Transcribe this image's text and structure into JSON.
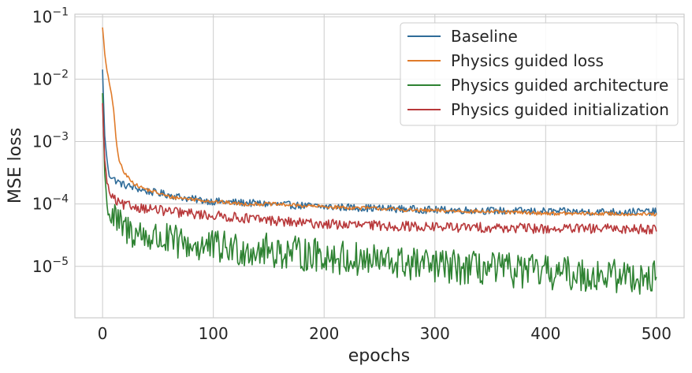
{
  "chart_data": {
    "type": "line",
    "xlabel": "epochs",
    "ylabel": "MSE loss",
    "xlim": [
      -25,
      525
    ],
    "ylim": [
      1.5e-06,
      0.11
    ],
    "yscale": "log",
    "grid": true,
    "legend_position": "top-right",
    "x_ticks": [
      0,
      100,
      200,
      300,
      400,
      500
    ],
    "x_tick_labels": [
      "0",
      "100",
      "200",
      "300",
      "400",
      "500"
    ],
    "y_ticks": [
      1e-05,
      0.0001,
      0.001,
      0.01,
      0.1
    ],
    "y_tick_labels": [
      {
        "base": "10",
        "exp": "−5"
      },
      {
        "base": "10",
        "exp": "−4"
      },
      {
        "base": "10",
        "exp": "−3"
      },
      {
        "base": "10",
        "exp": "−2"
      },
      {
        "base": "10",
        "exp": "−1"
      }
    ],
    "series": [
      {
        "name": "Baseline",
        "color": "#2f6c99",
        "x": [
          0,
          2,
          4,
          6,
          10,
          15,
          20,
          30,
          40,
          50,
          60,
          80,
          100,
          125,
          150,
          175,
          200,
          225,
          250,
          275,
          300,
          325,
          350,
          375,
          400,
          425,
          450,
          475,
          500
        ],
        "y": [
          0.014,
          0.0012,
          0.0005,
          0.0003,
          0.00025,
          0.00022,
          0.0002,
          0.00018,
          0.00016,
          0.00015,
          0.00014,
          0.00012,
          0.00011,
          0.000105,
          0.0001,
          9.5e-05,
          9e-05,
          8.8e-05,
          8.5e-05,
          8.3e-05,
          8e-05,
          8e-05,
          7.8e-05,
          7.7e-05,
          7.6e-05,
          7.5e-05,
          7.5e-05,
          7.5e-05,
          7.5e-05
        ]
      },
      {
        "name": "Physics guided loss",
        "color": "#e07b2a",
        "x": [
          0,
          2,
          4,
          6,
          8,
          10,
          12,
          14,
          17,
          20,
          25,
          30,
          40,
          50,
          60,
          80,
          100,
          125,
          150,
          175,
          200,
          225,
          250,
          275,
          300,
          325,
          350,
          375,
          400,
          425,
          450,
          475,
          500
        ],
        "y": [
          0.07,
          0.025,
          0.013,
          0.009,
          0.006,
          0.003,
          0.0012,
          0.0006,
          0.0004,
          0.0003,
          0.00025,
          0.0002,
          0.00017,
          0.00015,
          0.00013,
          0.00012,
          0.00011,
          0.0001,
          0.0001,
          9.5e-05,
          9e-05,
          8.7e-05,
          8.5e-05,
          8e-05,
          7.8e-05,
          7.7e-05,
          7.5e-05,
          7.3e-05,
          7.1e-05,
          7e-05,
          7e-05,
          6.9e-05,
          6.8e-05
        ]
      },
      {
        "name": "Physics guided architecture",
        "color": "#2e8232",
        "x": [
          0,
          2,
          4,
          6,
          10,
          15,
          20,
          30,
          40,
          50,
          60,
          80,
          100,
          125,
          150,
          175,
          200,
          225,
          250,
          275,
          300,
          325,
          350,
          375,
          400,
          425,
          450,
          475,
          500
        ],
        "y": [
          0.006,
          0.0003,
          0.0001,
          7e-05,
          6e-05,
          4.5e-05,
          4e-05,
          3.5e-05,
          3e-05,
          2.8e-05,
          2.5e-05,
          2.2e-05,
          2e-05,
          1.9e-05,
          1.8e-05,
          1.6e-05,
          1.5e-05,
          1.3e-05,
          1.2e-05,
          1.1e-05,
          1e-05,
          9.5e-06,
          9e-06,
          8.5e-06,
          8e-06,
          7.5e-06,
          7.2e-06,
          7e-06,
          6.5e-06
        ]
      },
      {
        "name": "Physics guided initialization",
        "color": "#b8383a",
        "x": [
          0,
          2,
          4,
          6,
          10,
          15,
          20,
          30,
          40,
          50,
          60,
          80,
          100,
          125,
          150,
          175,
          200,
          225,
          250,
          275,
          300,
          325,
          350,
          375,
          400,
          425,
          450,
          475,
          500
        ],
        "y": [
          0.004,
          0.0005,
          0.00022,
          0.00015,
          0.00012,
          0.0001,
          9.5e-05,
          9e-05,
          8.5e-05,
          8e-05,
          7.5e-05,
          7e-05,
          6.5e-05,
          6e-05,
          5.5e-05,
          5e-05,
          4.8e-05,
          4.6e-05,
          4.5e-05,
          4.4e-05,
          4.3e-05,
          4.2e-05,
          4.2e-05,
          4.1e-05,
          4e-05,
          4e-05,
          4e-05,
          4e-05,
          4e-05
        ]
      }
    ]
  }
}
